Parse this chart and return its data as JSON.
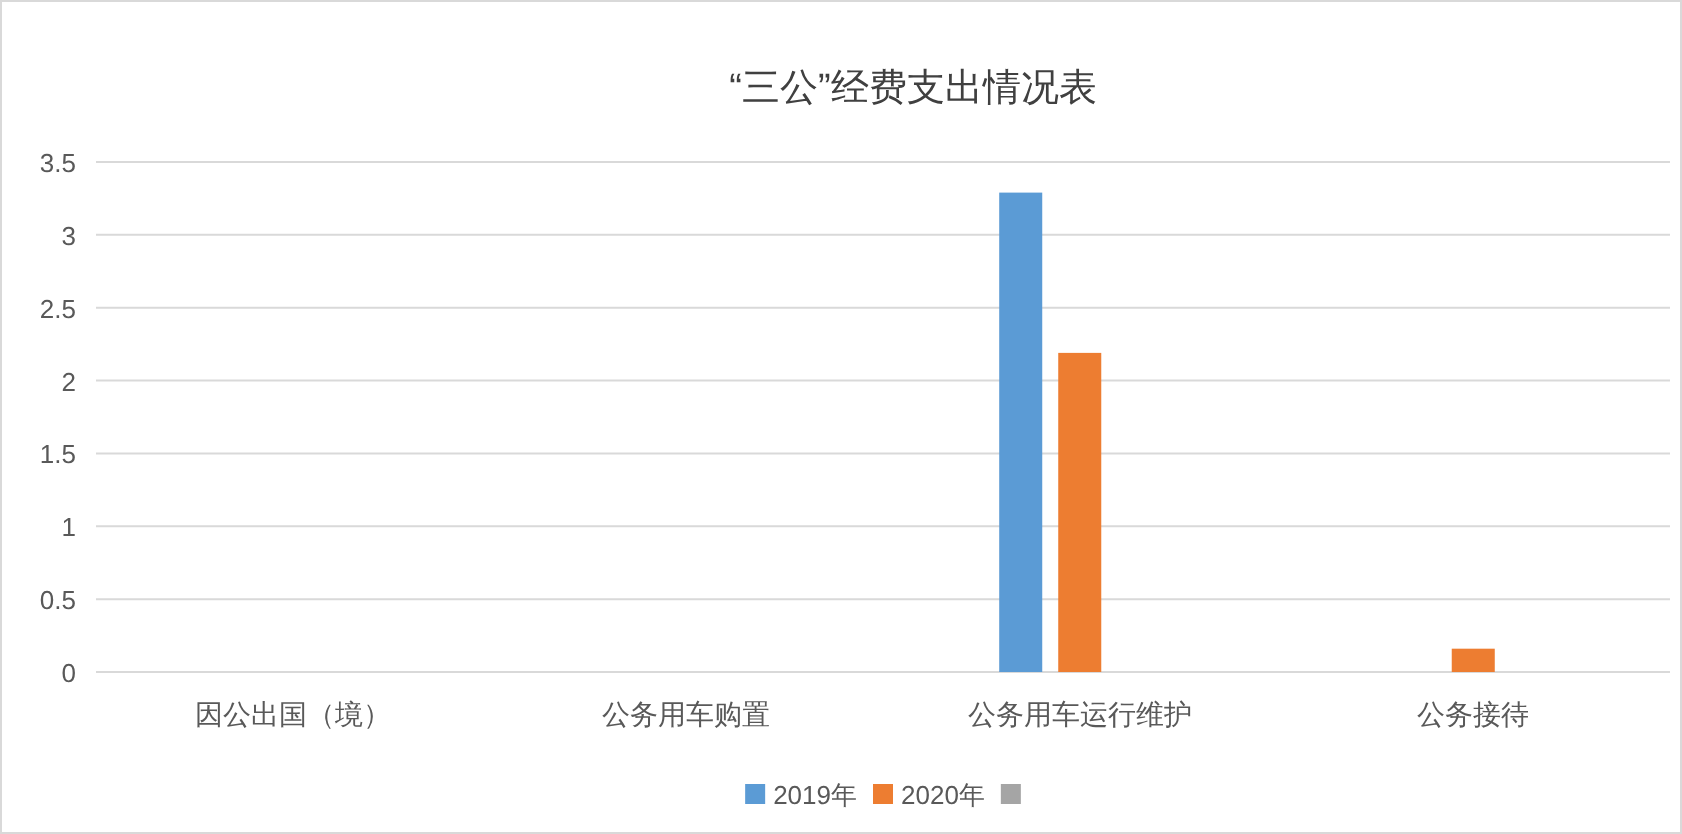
{
  "chart_data": {
    "type": "bar",
    "title": "“三公”经费支出情况表",
    "categories": [
      "因公出国（境）",
      "公务用车购置",
      "公务用车运行维护",
      "公务接待"
    ],
    "series": [
      {
        "name": "2019年",
        "color": "#5b9bd5",
        "values": [
          0,
          0,
          3.29,
          0
        ]
      },
      {
        "name": "2020年",
        "color": "#ed7d31",
        "values": [
          0,
          0,
          2.19,
          0.16
        ]
      },
      {
        "color": "#a5a5a5",
        "values": [
          null,
          null,
          null,
          null
        ]
      }
    ],
    "ylim": [
      0,
      3.5
    ],
    "yticks": [
      0,
      0.5,
      1,
      1.5,
      2,
      2.5,
      3,
      3.5
    ],
    "grid": "y",
    "legend": "bottom"
  }
}
